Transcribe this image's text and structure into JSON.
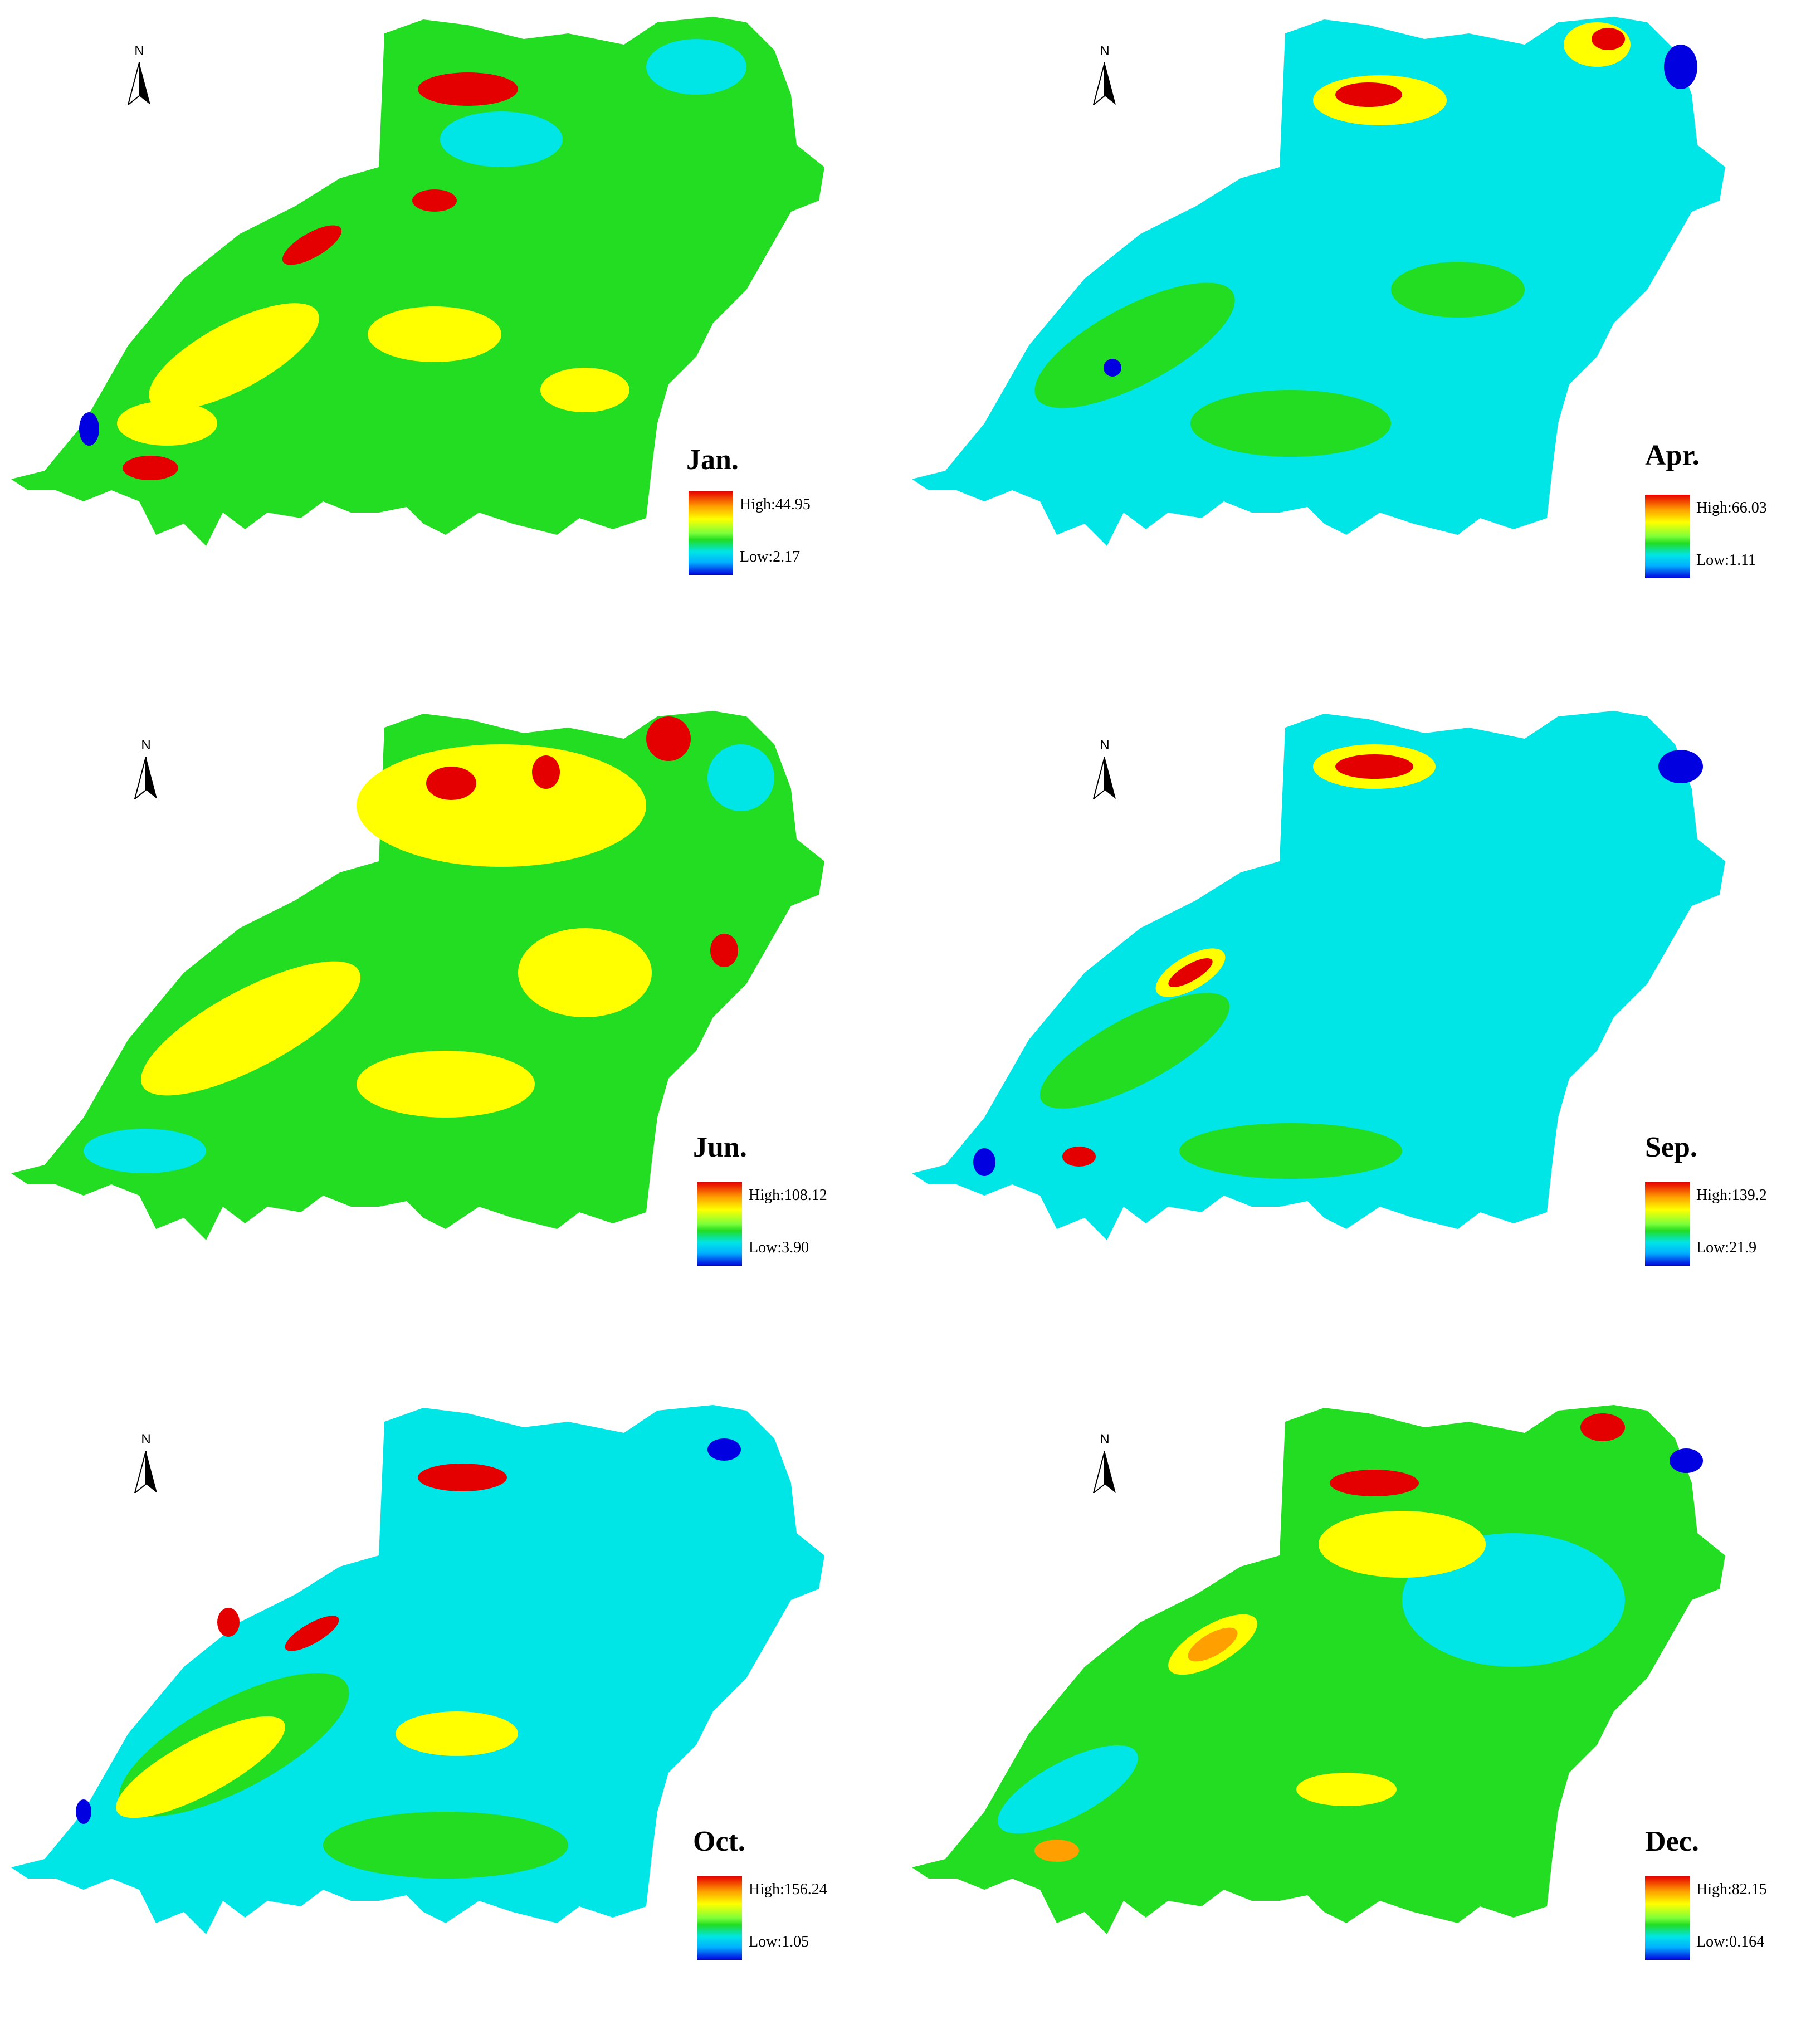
{
  "north_label": "N",
  "colors": {
    "high": "#e50000",
    "orange": "#ff9f00",
    "yellow": "#ffff00",
    "green": "#22dd22",
    "cyan": "#00e5e5",
    "blue": "#0000e0"
  },
  "panels": [
    {
      "month": "Jan.",
      "high": "High:44.95",
      "low": "Low:2.17",
      "base": "#22dd22",
      "secondary": "#ffff00"
    },
    {
      "month": "Apr.",
      "high": "High:66.03",
      "low": "Low:1.11",
      "base": "#00e5e5",
      "secondary": "#22dd22"
    },
    {
      "month": "Jun.",
      "high": "High:108.12",
      "low": "Low:3.90",
      "base": "#22dd22",
      "secondary": "#ffff00"
    },
    {
      "month": "Sep.",
      "high": "High:139.2",
      "low": "Low:21.9",
      "base": "#00e5e5",
      "secondary": "#22dd22"
    },
    {
      "month": "Oct.",
      "high": "High:156.24",
      "low": "Low:1.05",
      "base": "#00e5e5",
      "secondary": "#22dd22"
    },
    {
      "month": "Dec.",
      "high": "High:82.15",
      "low": "Low:0.164",
      "base": "#22dd22",
      "secondary": "#00e5e5"
    }
  ]
}
